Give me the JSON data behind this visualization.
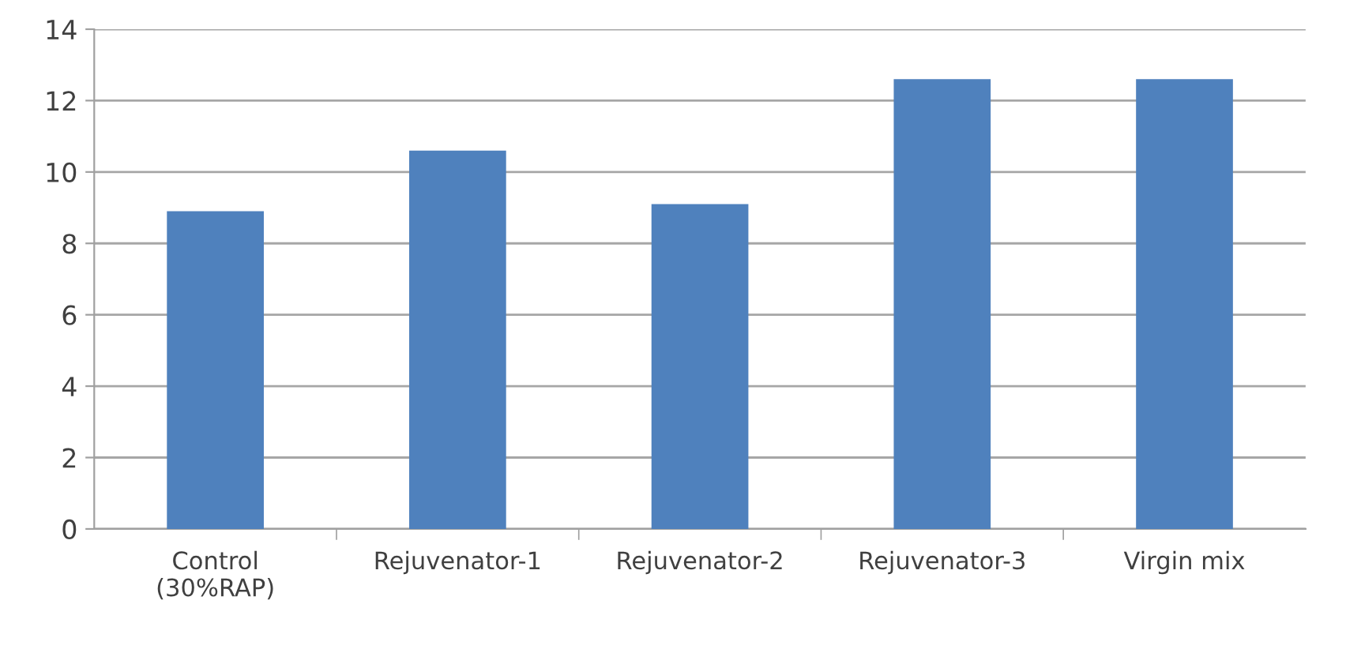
{
  "chart_data": {
    "type": "bar",
    "categories": [
      "Control\n(30%RAP)",
      "Rejuvenator-1",
      "Rejuvenator-2",
      "Rejuvenator-3",
      "Virgin mix"
    ],
    "values": [
      8.9,
      10.6,
      9.1,
      12.6,
      12.6
    ],
    "color": "#4f81bd",
    "ylim": [
      0,
      14
    ],
    "yticks": [
      0,
      2,
      4,
      6,
      8,
      10,
      12,
      14
    ],
    "grid": "y"
  }
}
